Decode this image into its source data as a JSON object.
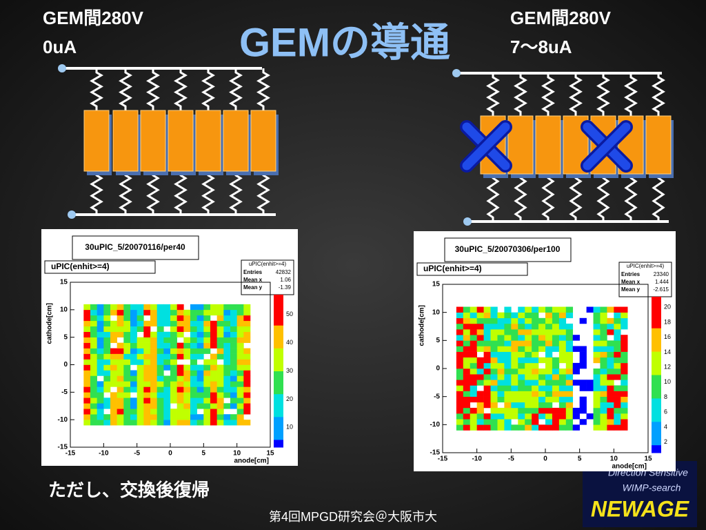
{
  "title": "GEMの導通",
  "left": {
    "label": [
      "GEM間280V",
      "0uA"
    ]
  },
  "right": {
    "label": [
      "GEM間280V",
      "7～8uA"
    ]
  },
  "plots": [
    {
      "run": "30uPIC_5/20070116/per40",
      "hist": "uPIC(enhit>=4)",
      "stats": {
        "title": "uPIC(enhit>=4)",
        "rows": [
          [
            "Entries",
            42832
          ],
          [
            "Mean x",
            1.06
          ],
          [
            "Mean y",
            -1.39
          ]
        ]
      },
      "ylabel": "cathode[cm]",
      "xlabel": "anode[cm]",
      "xticks": [
        -15,
        -10,
        -5,
        0,
        5,
        10,
        15
      ],
      "yticks": [
        15,
        10,
        5,
        0,
        -5,
        -10,
        -15
      ],
      "zticks": [
        50,
        40,
        30,
        20,
        10
      ]
    },
    {
      "run": "30uPIC_5/20070306/per100",
      "hist": "uPIC(enhit>=4)",
      "stats": {
        "title": "uPIC(enhit>=4)",
        "rows": [
          [
            "Entries",
            23340
          ],
          [
            "Mean x",
            1.444
          ],
          [
            "Mean y",
            -2.615
          ]
        ]
      },
      "ylabel": "cathode[cm]",
      "xlabel": "anode[cm]",
      "xticks": [
        -15,
        -10,
        -5,
        0,
        5,
        10,
        15
      ],
      "yticks": [
        15,
        10,
        5,
        0,
        -5,
        -10,
        -15
      ],
      "zticks": [
        20,
        18,
        16,
        14,
        12,
        10,
        8,
        6,
        4,
        2
      ]
    }
  ],
  "note": "ただし、交換後復帰",
  "footer": "第4回MPGD研究会＠大阪市大",
  "logo": [
    "Direction Sensitive",
    "WIMP-search",
    "NEWAGE"
  ]
}
